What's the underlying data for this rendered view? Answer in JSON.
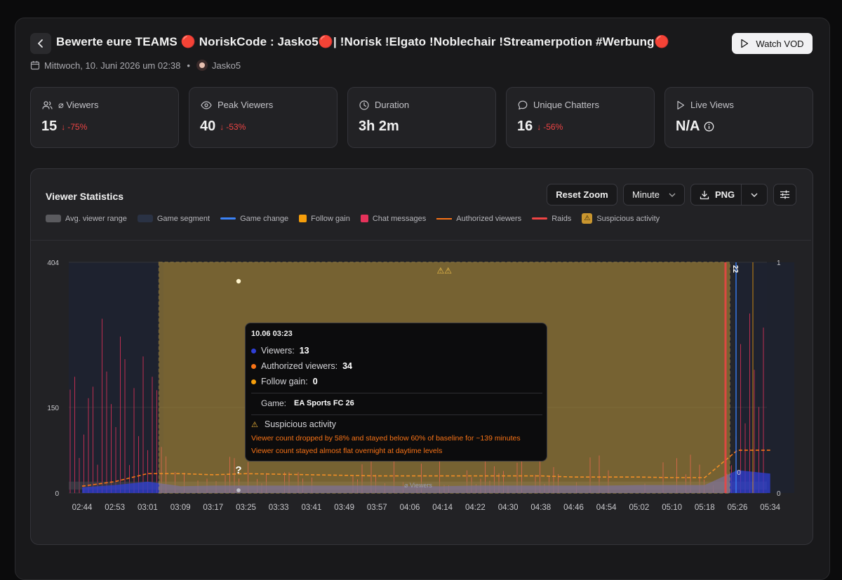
{
  "header": {
    "title": "Bewerte eure TEAMS 🔴 NoriskCode : Jasko5🔴| !Norisk !Elgato !Noblechair !Streamerpotion #Werbung🔴",
    "date": "Mittwoch, 10. Juni 2026 um 02:38",
    "separator": "•",
    "streamer": "Jasko5",
    "watch_vod_label": "Watch VOD"
  },
  "stats": [
    {
      "label": "⌀ Viewers",
      "value": "15",
      "change": "-75%",
      "icon": "users-icon"
    },
    {
      "label": "Peak Viewers",
      "value": "40",
      "change": "-53%",
      "icon": "eye-icon"
    },
    {
      "label": "Duration",
      "value": "3h 2m",
      "change": "",
      "icon": "clock-icon"
    },
    {
      "label": "Unique Chatters",
      "value": "16",
      "change": "-56%",
      "icon": "chat-bubble-icon"
    },
    {
      "label": "Live Views",
      "value": "N/A",
      "change": "",
      "icon": "play-icon"
    }
  ],
  "chart_panel": {
    "title": "Viewer Statistics",
    "reset_zoom_label": "Reset Zoom",
    "interval_selected": "Minute",
    "export_label": "PNG",
    "legend": [
      {
        "label": "Avg. viewer range",
        "color": "#5a5a5e",
        "icon": "swatch"
      },
      {
        "label": "Game segment",
        "color": "#2a3244",
        "icon": "swatch"
      },
      {
        "label": "Game change",
        "color": "#3b82f6",
        "icon": "line"
      },
      {
        "label": "Follow gain",
        "color": "#f59e0b",
        "icon": "swatch"
      },
      {
        "label": "Chat messages",
        "color": "#e5325a",
        "icon": "swatch"
      },
      {
        "label": "Authorized viewers",
        "color": "#f97316",
        "icon": "line"
      },
      {
        "label": "Raids",
        "color": "#ef4444",
        "icon": "line"
      },
      {
        "label": "Suspicious activity",
        "color": "#e6b24a",
        "icon": "warning-swatch"
      }
    ]
  },
  "colors": {
    "viewers": "#2f3fd6",
    "authorized": "#f97316",
    "suspicious": "#e6b53c",
    "chat": "#e5325a",
    "raid": "#ef4444"
  },
  "chart_data": {
    "type": "line",
    "x_ticks": [
      "02:44",
      "02:53",
      "03:01",
      "03:09",
      "03:17",
      "03:25",
      "03:33",
      "03:41",
      "03:49",
      "03:57",
      "04:06",
      "04:14",
      "04:22",
      "04:30",
      "04:38",
      "04:46",
      "04:54",
      "05:02",
      "05:10",
      "05:18",
      "05:26",
      "05:34"
    ],
    "y_left_ticks": [
      "404",
      "150",
      "0"
    ],
    "y_right_ticks": [
      "1",
      "0"
    ],
    "ylim_left": [
      0,
      404
    ],
    "ylim_right": [
      0,
      1
    ],
    "series": [
      {
        "name": "Viewers",
        "x": [
          "02:44",
          "02:53",
          "03:01",
          "03:09",
          "03:17",
          "03:25",
          "03:33",
          "03:41",
          "03:49",
          "03:57",
          "04:06",
          "04:14",
          "04:22",
          "04:30",
          "04:38",
          "04:46",
          "04:54",
          "05:02",
          "05:10",
          "05:18",
          "05:26",
          "05:34"
        ],
        "y": [
          10,
          14,
          20,
          12,
          13,
          13,
          13,
          13,
          13,
          13,
          12,
          12,
          13,
          13,
          13,
          13,
          13,
          14,
          14,
          14,
          40,
          34
        ]
      },
      {
        "name": "Authorized viewers",
        "x": [
          "02:44",
          "02:53",
          "03:01",
          "03:09",
          "03:17",
          "03:25",
          "03:33",
          "03:41",
          "03:49",
          "03:57",
          "04:06",
          "04:14",
          "04:22",
          "04:30",
          "04:38",
          "04:46",
          "04:54",
          "05:02",
          "05:10",
          "05:18",
          "05:26",
          "05:34"
        ],
        "y": [
          12,
          20,
          34,
          34,
          32,
          34,
          33,
          32,
          31,
          30,
          30,
          30,
          30,
          30,
          30,
          28,
          28,
          28,
          27,
          27,
          75,
          75
        ]
      }
    ],
    "game_change_label": "22",
    "avg_label": "⌀ Viewers",
    "right_marker_label": "0",
    "suspicious_range": [
      "03:03",
      "05:24"
    ],
    "suspicious_icon": "⚠⚠"
  },
  "tooltip": {
    "timestamp": "10.06 03:23",
    "viewers_label": "Viewers:",
    "viewers_value": "13",
    "authorized_label": "Authorized viewers:",
    "authorized_value": "34",
    "follow_label": "Follow gain:",
    "follow_value": "0",
    "game_label": "Game:",
    "game_value": "EA Sports FC 26",
    "suspicious_title": "Suspicious activity",
    "suspicious_lines": [
      "Viewer count dropped by 58% and stayed below 60% of baseline for ~139 minutes",
      "Viewer count stayed almost flat overnight at daytime levels"
    ]
  }
}
